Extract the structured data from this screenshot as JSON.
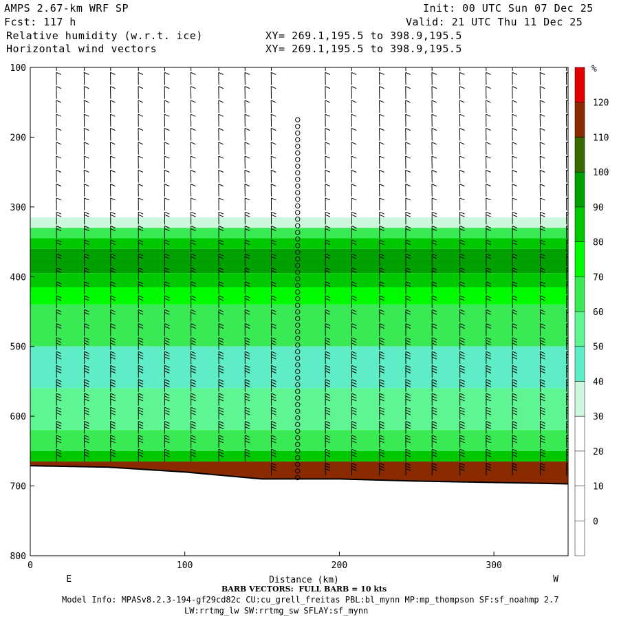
{
  "header": {
    "model": "AMPS 2.67-km WRF SP",
    "forecast": "Fcst: 117 h",
    "field1": "Relative humidity (w.r.t. ice)",
    "field2": "Horizontal wind vectors",
    "init": "Init: 00 UTC Sun 07 Dec 25",
    "valid": "Valid: 21 UTC Thu 11 Dec 25",
    "xy1": "XY= 269.1,195.5 to 398.9,195.5",
    "xy2": "XY= 269.1,195.5 to 398.9,195.5"
  },
  "footer": {
    "barb_note": "BARB VECTORS:  FULL BARB = 10 kts",
    "model_info": "Model Info: MPASv8.2.3-194-gf29cd82c CU:cu_grell_freitas PBL:bl_mynn MP:mp_thompson SF:sf_noahmp 2.7",
    "model_info2": "LW:rrtmg_lw SW:rrtmg_sw SFLAY:sf_mynn"
  },
  "chart_data": {
    "type": "heatmap",
    "title": "Relative humidity (w.r.t. ice)",
    "xlabel": "Distance (km)",
    "ylabel": "",
    "xlim": [
      0,
      348
    ],
    "ylim": [
      800,
      100
    ],
    "xticks": [
      0,
      100,
      200,
      300
    ],
    "yticks": [
      100,
      200,
      300,
      400,
      500,
      600,
      700,
      800
    ],
    "x_endpoints": [
      "E",
      "W"
    ],
    "colorbar": {
      "unit": "%",
      "levels": [
        0,
        10,
        20,
        30,
        40,
        50,
        60,
        70,
        80,
        90,
        100,
        110,
        120
      ],
      "colors": [
        "#ffffff",
        "#ffffff",
        "#ffffff",
        "#ffffff",
        "#cdf8de",
        "#5fedc8",
        "#5ef592",
        "#3aea55",
        "#00fa00",
        "#00c800",
        "#00a000",
        "#3a6a00",
        "#8a2a00",
        "#e00000"
      ]
    },
    "rh_bands_by_pressure": [
      {
        "p": 300,
        "rh": 20
      },
      {
        "p": 315,
        "rh": 35
      },
      {
        "p": 330,
        "rh": 60
      },
      {
        "p": 345,
        "rh": 80
      },
      {
        "p": 360,
        "rh": 95
      },
      {
        "p": 375,
        "rh": 95
      },
      {
        "p": 395,
        "rh": 88
      },
      {
        "p": 415,
        "rh": 72
      },
      {
        "p": 440,
        "rh": 62
      },
      {
        "p": 500,
        "rh": 45
      },
      {
        "p": 560,
        "rh": 58
      },
      {
        "p": 620,
        "rh": 65
      },
      {
        "p": 650,
        "rh": 85
      },
      {
        "p": 665,
        "rh": 115
      }
    ],
    "terrain_pressure": [
      {
        "x": 0,
        "p": 671
      },
      {
        "x": 50,
        "p": 673
      },
      {
        "x": 100,
        "p": 680
      },
      {
        "x": 150,
        "p": 690
      },
      {
        "x": 200,
        "p": 690
      },
      {
        "x": 250,
        "p": 693
      },
      {
        "x": 300,
        "p": 695
      },
      {
        "x": 348,
        "p": 697
      }
    ],
    "calm_column_x_km": 173,
    "barb_columns_km": [
      17,
      35,
      52,
      70,
      87,
      104,
      122,
      139,
      156,
      173,
      191,
      208,
      226,
      243,
      260,
      278,
      295,
      312,
      330,
      347
    ]
  }
}
